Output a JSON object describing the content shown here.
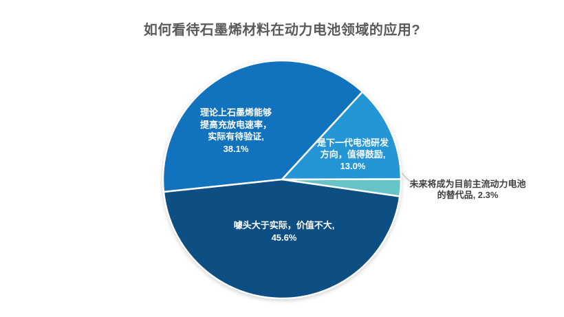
{
  "title": "如何看待石墨烯材料在动力电池领域的应用?",
  "chart_data": {
    "type": "pie",
    "title": "如何看待石墨烯材料在动力电池领域的应用?",
    "unit": "percent",
    "slices": [
      {
        "label": "理论上石墨烯能够提高充放电速率，实际有待验证",
        "value": 38.1,
        "pct_text": "38.1%",
        "color": "#1173BD",
        "label_position": "inside",
        "label_color": "#FFFFFF",
        "label_lines": [
          "理论上石墨烯能够",
          "提高充放电速率，",
          "实际有待验证,",
          "38.1%"
        ]
      },
      {
        "label": "是下一代电池研发方向，值得鼓励",
        "value": 13.0,
        "pct_text": "13.0%",
        "color": "#2496D6",
        "label_position": "inside",
        "label_color": "#FFFFFF",
        "label_lines": [
          "是下一代电池研发",
          "方向，值得鼓励,",
          "13.0%"
        ]
      },
      {
        "label": "未来将成为目前主流动力电池的替代品",
        "value": 2.3,
        "pct_text": "2.3%",
        "color": "#66C4C8",
        "label_position": "outside",
        "label_color": "#3F3F3F",
        "label_lines": [
          "未来将成为目前主流动力电池",
          "的替代品, 2.3%"
        ]
      },
      {
        "label": "噱头大于实际，价值不大",
        "value": 45.6,
        "pct_text": "45.6%",
        "color": "#0D4F82",
        "label_position": "inside",
        "label_color": "#FFFFFF",
        "label_lines": [
          "噱头大于实际，价值不大,",
          "45.6%"
        ]
      }
    ],
    "start_angle_deg": 264,
    "direction": "clockwise",
    "values_sum": 99.0,
    "legend": "none",
    "slice_border_color": "#FFFFFF",
    "leader_line_color": "#BFBFBF",
    "title_color": "#595959",
    "background": "#FFFFFF"
  }
}
